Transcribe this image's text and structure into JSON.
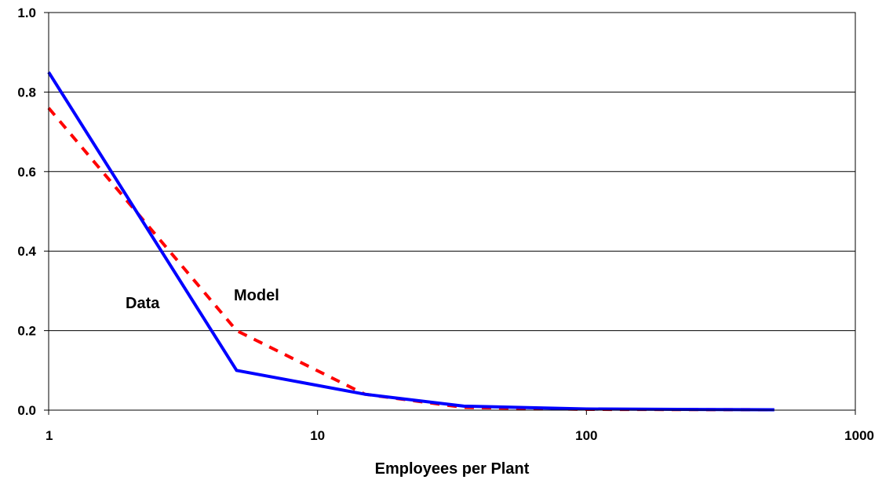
{
  "chart_data": {
    "type": "line",
    "title": "",
    "xlabel": "Employees per Plant",
    "ylabel": "",
    "x_scale": "log",
    "xlim": [
      1,
      1000
    ],
    "ylim": [
      0,
      1
    ],
    "x_ticks": [
      "1",
      "10",
      "100",
      "1000"
    ],
    "y_ticks": [
      "0.0",
      "0.2",
      "0.4",
      "0.6",
      "0.8",
      "1.0"
    ],
    "grid": "horizontal",
    "legend": "none",
    "series": [
      {
        "name": "Data",
        "color": "#0000ff",
        "style": "solid",
        "x": [
          1,
          5,
          15,
          35,
          100,
          500
        ],
        "y": [
          0.85,
          0.1,
          0.04,
          0.01,
          0.003,
          0.001
        ]
      },
      {
        "name": "Model",
        "color": "#ff0000",
        "style": "dashed",
        "x": [
          1,
          5,
          15,
          35,
          100,
          500
        ],
        "y": [
          0.76,
          0.2,
          0.04,
          0.007,
          0.002,
          0.001
        ]
      }
    ]
  }
}
